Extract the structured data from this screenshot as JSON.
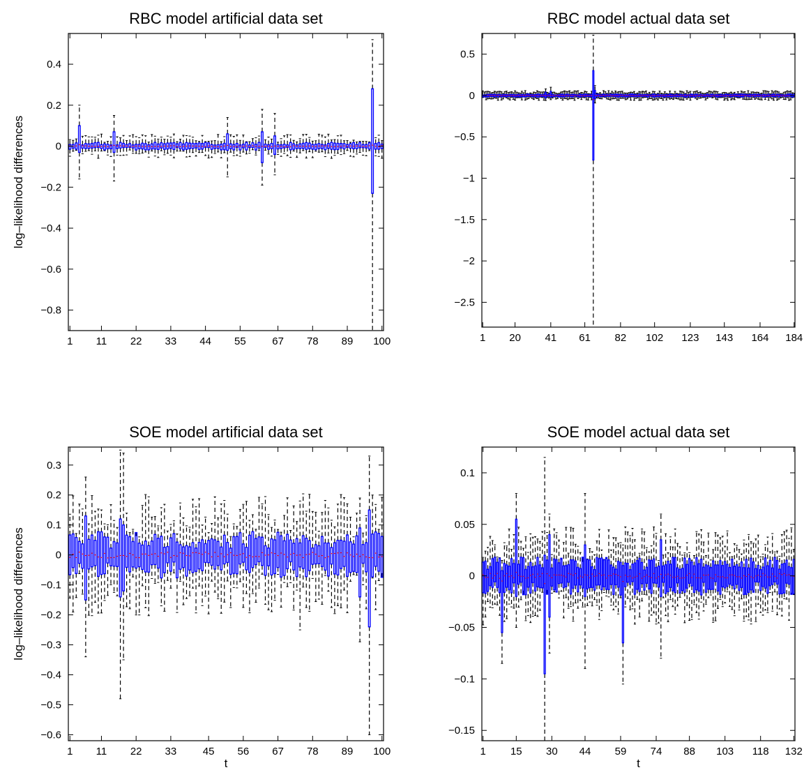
{
  "figure": {
    "type": "boxplot-grid",
    "rows": 2,
    "cols": 2
  },
  "chart_data": [
    {
      "type": "boxplot",
      "title": "RBC model artificial data set",
      "ylabel": "log–likelihood differences",
      "xlabel": "",
      "n_boxes": 100,
      "ylim": [
        -0.9,
        0.55
      ],
      "yticks": [
        0.4,
        0.2,
        0,
        -0.2,
        -0.4,
        -0.6,
        -0.8
      ],
      "ytick_labels": [
        "0.4",
        "0.2",
        "0",
        "−0.2",
        "−0.4",
        "−0.6",
        "−0.8"
      ],
      "xticks": [
        1,
        11,
        22,
        33,
        44,
        55,
        67,
        78,
        89,
        100
      ],
      "base_box": 0.012,
      "base_whisker": 0.035,
      "spikes": [
        {
          "t": 4,
          "q1": -0.03,
          "q3": 0.1,
          "lo": -0.16,
          "hi": 0.2
        },
        {
          "t": 15,
          "q1": -0.03,
          "q3": 0.07,
          "lo": -0.17,
          "hi": 0.15
        },
        {
          "t": 51,
          "q1": -0.02,
          "q3": 0.06,
          "lo": -0.15,
          "hi": 0.14
        },
        {
          "t": 62,
          "q1": -0.08,
          "q3": 0.07,
          "lo": -0.19,
          "hi": 0.18
        },
        {
          "t": 66,
          "q1": -0.04,
          "q3": 0.05,
          "lo": -0.14,
          "hi": 0.16
        },
        {
          "t": 97,
          "q1": -0.23,
          "q3": 0.28,
          "lo": -0.9,
          "hi": 0.52
        }
      ]
    },
    {
      "type": "boxplot",
      "title": "RBC model actual data set",
      "ylabel": "",
      "xlabel": "",
      "n_boxes": 184,
      "ylim": [
        -2.8,
        0.75
      ],
      "yticks": [
        0.5,
        0,
        -0.5,
        -1,
        -1.5,
        -2,
        -2.5
      ],
      "ytick_labels": [
        "0.5",
        "0",
        "−0.5",
        "−1",
        "−1.5",
        "−2",
        "−2.5"
      ],
      "xticks": [
        1,
        20,
        41,
        61,
        82,
        102,
        123,
        143,
        164,
        184
      ],
      "base_box": 0.012,
      "base_whisker": 0.035,
      "spikes": [
        {
          "t": 66,
          "q1": -0.78,
          "q3": 0.3,
          "lo": -2.8,
          "hi": 0.73
        },
        {
          "t": 67,
          "q1": -0.04,
          "q3": 0.06,
          "lo": -0.09,
          "hi": 0.12
        },
        {
          "t": 41,
          "q1": -0.02,
          "q3": 0.05,
          "lo": -0.05,
          "hi": 0.1
        },
        {
          "t": 38,
          "q1": -0.03,
          "q3": 0.04,
          "lo": -0.06,
          "hi": 0.08
        }
      ]
    },
    {
      "type": "boxplot",
      "title": "SOE model artificial data set",
      "ylabel": "log–likelihood differences",
      "xlabel": "t",
      "n_boxes": 100,
      "ylim": [
        -0.62,
        0.36
      ],
      "yticks": [
        0.3,
        0.2,
        0.1,
        0,
        -0.1,
        -0.2,
        -0.3,
        -0.4,
        -0.5,
        -0.6
      ],
      "ytick_labels": [
        "0.3",
        "0.2",
        "0.1",
        "0",
        "−0.1",
        "−0.2",
        "−0.3",
        "−0.4",
        "−0.5",
        "−0.6"
      ],
      "xticks": [
        1,
        11,
        22,
        33,
        45,
        56,
        67,
        78,
        89,
        100
      ],
      "base_box": 0.05,
      "base_whisker": 0.12,
      "spikes": [
        {
          "t": 6,
          "q1": -0.15,
          "q3": 0.13,
          "lo": -0.34,
          "hi": 0.26
        },
        {
          "t": 17,
          "q1": -0.14,
          "q3": 0.12,
          "lo": -0.48,
          "hi": 0.35
        },
        {
          "t": 18,
          "q1": -0.12,
          "q3": 0.1,
          "lo": -0.35,
          "hi": 0.34
        },
        {
          "t": 74,
          "q1": -0.04,
          "q3": 0.04,
          "lo": -0.25,
          "hi": 0.18
        },
        {
          "t": 93,
          "q1": -0.14,
          "q3": 0.09,
          "lo": -0.29,
          "hi": 0.19
        },
        {
          "t": 96,
          "q1": -0.24,
          "q3": 0.15,
          "lo": -0.6,
          "hi": 0.33
        }
      ]
    },
    {
      "type": "boxplot",
      "title": "SOE model actual data set",
      "ylabel": "",
      "xlabel": "t",
      "n_boxes": 132,
      "ylim": [
        -0.16,
        0.125
      ],
      "yticks": [
        0.1,
        0.05,
        0,
        -0.05,
        -0.1,
        -0.15
      ],
      "ytick_labels": [
        "0.1",
        "0.05",
        "0",
        "−0.05",
        "−0.1",
        "−0.15"
      ],
      "xticks": [
        1,
        15,
        30,
        44,
        59,
        74,
        88,
        103,
        118,
        132
      ],
      "base_box": 0.012,
      "base_whisker": 0.028,
      "spikes": [
        {
          "t": 9,
          "q1": -0.055,
          "q3": 0.005,
          "lo": -0.085,
          "hi": 0.015
        },
        {
          "t": 15,
          "q1": -0.02,
          "q3": 0.055,
          "lo": -0.05,
          "hi": 0.08
        },
        {
          "t": 27,
          "q1": -0.095,
          "q3": 0.02,
          "lo": -0.16,
          "hi": 0.115
        },
        {
          "t": 29,
          "q1": -0.04,
          "q3": 0.04,
          "lo": -0.075,
          "hi": 0.06
        },
        {
          "t": 44,
          "q1": -0.02,
          "q3": 0.03,
          "lo": -0.09,
          "hi": 0.08
        },
        {
          "t": 60,
          "q1": -0.065,
          "q3": 0.01,
          "lo": -0.105,
          "hi": 0.03
        },
        {
          "t": 76,
          "q1": -0.02,
          "q3": 0.035,
          "lo": -0.08,
          "hi": 0.06
        }
      ]
    }
  ],
  "colors": {
    "box": "#0000ff",
    "median": "#ff0000",
    "whisker": "#000000",
    "axis": "#000000"
  }
}
